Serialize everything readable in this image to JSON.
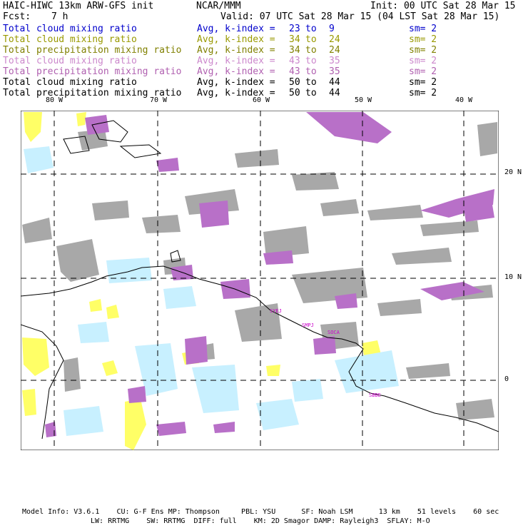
{
  "header": {
    "model_title": "HAIC-HIWC 13km ARW-GFS init",
    "org": "NCAR/MMM",
    "init_time": "Init: 00 UTC Sat 28 Mar 15",
    "fcst_label": "Fcst:",
    "fcst_value": "7 h",
    "valid_time": "Valid: 07 UTC Sat 28 Mar 15 (04 LST Sat 28 Mar 15)"
  },
  "legend": [
    {
      "field": "Total cloud mixing ratio",
      "avg": "Avg, k-index =",
      "k_from": "23",
      "to": "to",
      "k_to": "9",
      "sm": "sm= 2",
      "color": "#0000cc"
    },
    {
      "field": "Total cloud mixing ratio",
      "avg": "Avg, k-index =",
      "k_from": "34",
      "to": "to",
      "k_to": "24",
      "sm": "sm= 2",
      "color": "#999900"
    },
    {
      "field": "Total precipitation mixing ratio",
      "avg": "Avg, k-index =",
      "k_from": "34",
      "to": "to",
      "k_to": "24",
      "sm": "sm= 2",
      "color": "#808000"
    },
    {
      "field": "Total cloud mixing ratio",
      "avg": "Avg, k-index =",
      "k_from": "43",
      "to": "to",
      "k_to": "35",
      "sm": "sm= 2",
      "color": "#cc88cc"
    },
    {
      "field": "Total precipitation mixing ratio",
      "avg": "Avg, k-index =",
      "k_from": "43",
      "to": "to",
      "k_to": "35",
      "sm": "sm= 2",
      "color": "#b060b0"
    },
    {
      "field": "Total cloud mixing ratio",
      "avg": "Avg, k-index =",
      "k_from": "50",
      "to": "to",
      "k_to": "44",
      "sm": "sm= 2",
      "color": "#000000"
    },
    {
      "field": "Total precipitation mixing ratio",
      "avg": "Avg, k-index =",
      "k_from": "50",
      "to": "to",
      "k_to": "44",
      "sm": "sm= 2",
      "color": "#000000"
    }
  ],
  "axes": {
    "lon_labels": [
      "80 W",
      "70 W",
      "60 W",
      "50 W",
      "40 W"
    ],
    "lat_labels": [
      "20 N",
      "10 N",
      "0"
    ]
  },
  "stations": [
    "SYEJ",
    "SMPJ",
    "SOCA",
    "SBBE"
  ],
  "colors": {
    "gray_cloud": "#a8a8a8",
    "purple_precip": "#b870c8",
    "yellow_cloud": "#ffff66",
    "lightblue_cloud": "#c8f0ff",
    "station_text": "#cc00cc"
  },
  "footer": {
    "line1": "Model Info: V3.6.1    CU: G-F Ens MP: Thompson     PBL: YSU      SF: Noah LSM      13 km    51 levels    60 sec",
    "line2": "LW: RRTMG    SW: RRTMG  DIFF: full    KM: 2D Smagor DAMP: Rayleigh3  SFLAY: M-O"
  }
}
